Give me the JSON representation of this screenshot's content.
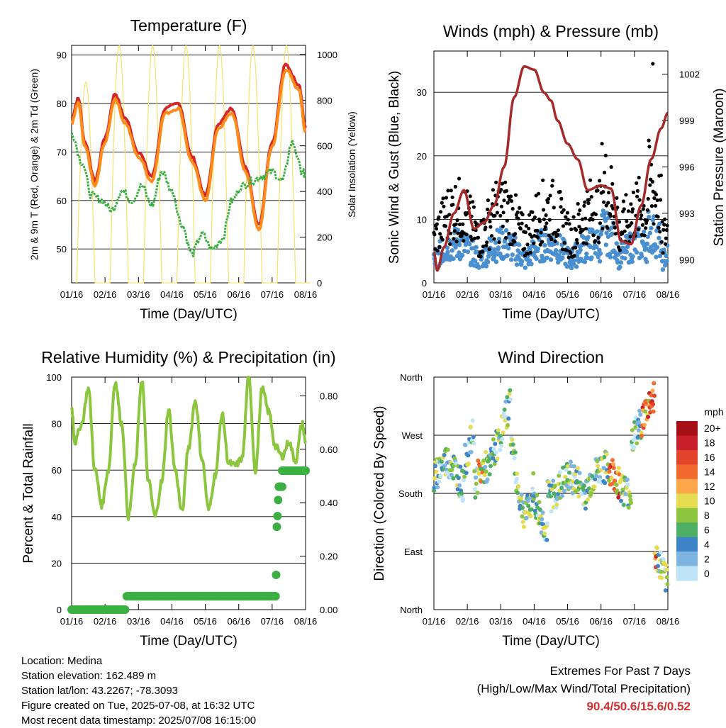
{
  "chart_data": [
    {
      "id": "temperature",
      "type": "line",
      "title": "Temperature (F)",
      "xlabel": "Time (Day/UTC)",
      "ylabel": "2m & 9m T (Red, Orange) & 2m Td (Green)",
      "y2label": "Solar Insolation (Yellow)",
      "x_ticks": [
        "01/16",
        "02/16",
        "03/16",
        "04/16",
        "05/16",
        "06/16",
        "07/16",
        "08/16"
      ],
      "ylim": [
        43,
        92
      ],
      "y_ticks": [
        50,
        60,
        70,
        80,
        90
      ],
      "y2lim": [
        0,
        1040
      ],
      "y2_ticks": [
        0,
        200,
        400,
        600,
        800,
        1000
      ],
      "series": [
        {
          "color": "#d62728",
          "x": [
            0,
            0.2,
            0.4,
            0.7,
            1.0,
            1.3,
            1.6,
            2.0,
            2.4,
            2.8,
            3.2,
            3.6,
            4.0,
            4.4,
            4.8,
            5.2,
            5.6,
            6.0,
            6.4,
            6.8,
            7.0
          ],
          "values": [
            77,
            81,
            72,
            64,
            73,
            82,
            77,
            70,
            65,
            79,
            80,
            69,
            61,
            76,
            79,
            67,
            55,
            72,
            88,
            84,
            75
          ]
        },
        {
          "color": "#ff8c1a",
          "x": [
            0,
            0.2,
            0.4,
            0.7,
            1.0,
            1.3,
            1.6,
            2.0,
            2.4,
            2.8,
            3.2,
            3.6,
            4.0,
            4.4,
            4.8,
            5.2,
            5.6,
            6.0,
            6.4,
            6.8,
            7.0
          ],
          "values": [
            76,
            80,
            71,
            63,
            72,
            81,
            76,
            69,
            64,
            78,
            79,
            68,
            60,
            75,
            78,
            66,
            54,
            71,
            87,
            83,
            74
          ]
        },
        {
          "color": "#3cb043",
          "x": [
            0,
            0.3,
            0.6,
            0.9,
            1.2,
            1.5,
            1.8,
            2.1,
            2.4,
            2.7,
            3.0,
            3.3,
            3.6,
            3.9,
            4.2,
            4.5,
            4.8,
            5.1,
            5.4,
            5.7,
            6.0,
            6.3,
            6.6,
            6.9,
            7.0
          ],
          "values": [
            74,
            68,
            61,
            60,
            58,
            62,
            60,
            63,
            59,
            66,
            62,
            55,
            49,
            53,
            50,
            52,
            60,
            63,
            64,
            65,
            66,
            64,
            72,
            66,
            65
          ]
        }
      ],
      "insolation": {
        "color": "#f5e26b",
        "peaks": [
          880,
          1040,
          1040,
          1040,
          1040,
          1040,
          1040,
          1040,
          1040,
          1040,
          1040,
          1040,
          1040,
          1040,
          1040,
          1040,
          1040,
          1040,
          1040,
          1040,
          1040
        ]
      }
    },
    {
      "id": "winds",
      "type": "scatter",
      "title": "Winds (mph) & Pressure (mb)",
      "xlabel": "Time (Day/UTC)",
      "ylabel": "Sonic Wind & Gust (Blue, Black)",
      "y2label": "Station Pressure (Maroon)",
      "x_ticks": [
        "01/16",
        "02/16",
        "03/16",
        "04/16",
        "05/16",
        "06/16",
        "07/16",
        "08/16"
      ],
      "ylim": [
        0,
        36.5
      ],
      "y_ticks": [
        0,
        10,
        20,
        30
      ],
      "y2lim": [
        988.5,
        1003.5
      ],
      "y2_ticks": [
        990,
        993,
        996,
        999,
        1002
      ],
      "pressure": {
        "color": "#a52a2a",
        "x": [
          0,
          0.1,
          0.3,
          0.6,
          0.9,
          1.2,
          1.5,
          1.8,
          2.1,
          2.4,
          2.7,
          3.0,
          3.3,
          3.5,
          3.7,
          4.0,
          4.3,
          4.6,
          5.0,
          5.3,
          5.6,
          5.9,
          6.2,
          6.5,
          6.8,
          7.0
        ],
        "values": [
          990.5,
          989.3,
          990.8,
          993.0,
          994.5,
          992.0,
          992.4,
          993.5,
          996.0,
          1000.5,
          1002.5,
          1002.3,
          1000.8,
          1000.3,
          999.0,
          997.5,
          996.5,
          994.5,
          994.8,
          994.6,
          991.2,
          991.0,
          993.5,
          996.5,
          998.5,
          999.5
        ]
      },
      "gust_color": "#000000",
      "wind_color": "#4a90d0",
      "max_gust": 34.5
    },
    {
      "id": "humidity",
      "type": "line",
      "title": "Relative Humidity (%) & Precipitation (in)",
      "xlabel": "Time (Day/UTC)",
      "ylabel": "Percent & Total Rainfall",
      "x_ticks": [
        "01/16",
        "02/16",
        "03/16",
        "04/16",
        "05/16",
        "06/16",
        "07/16",
        "08/16"
      ],
      "ylim": [
        0,
        100
      ],
      "y_ticks": [
        0,
        20,
        40,
        60,
        80,
        100
      ],
      "y2lim": [
        0,
        0.87
      ],
      "y2_ticks": [
        "0.00",
        "0.20",
        "0.40",
        "0.60",
        "0.80"
      ],
      "rh": {
        "color": "#8cc63f",
        "x": [
          0,
          0.1,
          0.3,
          0.5,
          0.7,
          0.9,
          1.1,
          1.3,
          1.5,
          1.7,
          1.9,
          2.1,
          2.3,
          2.5,
          2.7,
          2.9,
          3.1,
          3.3,
          3.5,
          3.7,
          3.9,
          4.1,
          4.3,
          4.5,
          4.7,
          4.9,
          5.1,
          5.3,
          5.5,
          5.7,
          5.9,
          6.1,
          6.3,
          6.5,
          6.7,
          6.9,
          7.0
        ],
        "values": [
          87,
          72,
          80,
          95,
          60,
          45,
          60,
          98,
          80,
          40,
          62,
          99,
          55,
          40,
          55,
          86,
          60,
          42,
          70,
          90,
          65,
          43,
          58,
          84,
          63,
          62,
          65,
          100,
          60,
          95,
          85,
          70,
          66,
          72,
          64,
          80,
          72
        ]
      },
      "precip": {
        "color": "#3cb043",
        "x": [
          0,
          1.6,
          1.65,
          6.1,
          6.12,
          6.14,
          6.16,
          6.18,
          6.2,
          6.3,
          7.0
        ],
        "values": [
          0,
          0,
          0.05,
          0.05,
          0.13,
          0.31,
          0.35,
          0.41,
          0.46,
          0.52,
          0.52
        ]
      }
    },
    {
      "id": "wind_direction",
      "type": "scatter",
      "title": "Wind Direction",
      "xlabel": "Time (Day/UTC)",
      "ylabel": "Direction (Colored By Speed)",
      "x_ticks": [
        "01/16",
        "02/16",
        "03/16",
        "04/16",
        "05/16",
        "06/16",
        "07/16",
        "08/16"
      ],
      "y_ticks": [
        "North",
        "East",
        "South",
        "West",
        "North"
      ],
      "colorbar_title": "mph",
      "colorbar_labels": [
        "20+",
        "18",
        "16",
        "14",
        "12",
        "10",
        "8",
        "6",
        "4",
        "2",
        "0"
      ],
      "colorbar_colors": [
        "#a50f15",
        "#c8202a",
        "#e0452b",
        "#f26b2e",
        "#fca64a",
        "#e6dc52",
        "#8cc63f",
        "#4caf63",
        "#3d85c6",
        "#7db4e0",
        "#bfe4f7"
      ]
    }
  ],
  "info": {
    "location": "Location: Medina",
    "elevation": "Station elevation: 162.489 m",
    "latlon": "Station lat/lon: 43.2267; -78.3093",
    "created": "Figure created on Tue, 2025-07-08, at 16:32 UTC",
    "recent": "Most recent data timestamp: 2025/07/08 16:15:00"
  },
  "extremes": {
    "heading": "Extremes For Past 7 Days",
    "subheading": "(High/Low/Max Wind/Total Precipitation)",
    "values": "90.4/50.6/15.6/0.52"
  }
}
